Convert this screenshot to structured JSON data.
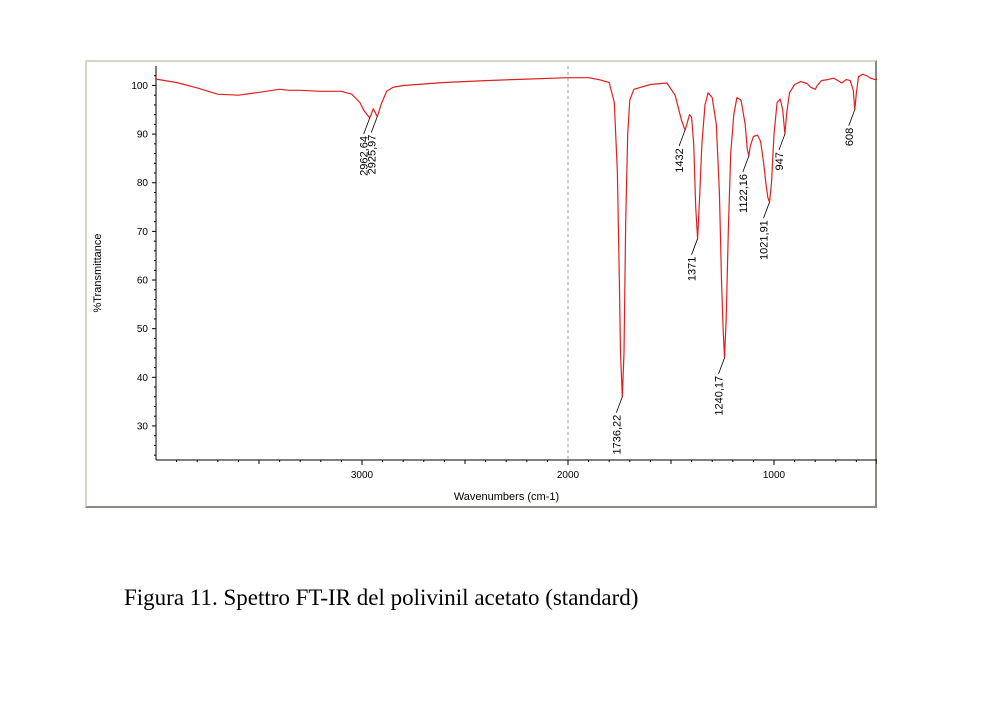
{
  "caption": "Figura 11. Spettro FT-IR del polivinil acetato (standard)",
  "chart_data": {
    "type": "line",
    "xlabel": "Wavenumbers (cm-1)",
    "ylabel": "%Transmittance",
    "xlim": [
      4000,
      500
    ],
    "ylim": [
      23,
      104
    ],
    "x_reversed": true,
    "x_ticks": [
      3000,
      2000,
      1000
    ],
    "y_ticks": [
      30,
      40,
      50,
      60,
      70,
      80,
      90,
      100
    ],
    "vertical_reference_line": 2000,
    "line_color": "#e02020",
    "series": [
      {
        "values": [
          [
            4000,
            101.3
          ],
          [
            3900,
            100.6
          ],
          [
            3800,
            99.5
          ],
          [
            3700,
            98.2
          ],
          [
            3600,
            98.0
          ],
          [
            3500,
            98.6
          ],
          [
            3400,
            99.2
          ],
          [
            3350,
            99.0
          ],
          [
            3300,
            99.0
          ],
          [
            3200,
            98.8
          ],
          [
            3100,
            98.8
          ],
          [
            3050,
            98.2
          ],
          [
            3010,
            96.5
          ],
          [
            2990,
            94.8
          ],
          [
            2962.64,
            93.3
          ],
          [
            2945,
            95.2
          ],
          [
            2925.97,
            93.6
          ],
          [
            2905,
            96.4
          ],
          [
            2880,
            98.8
          ],
          [
            2850,
            99.6
          ],
          [
            2800,
            100.0
          ],
          [
            2600,
            100.6
          ],
          [
            2400,
            101.0
          ],
          [
            2200,
            101.3
          ],
          [
            2000,
            101.6
          ],
          [
            1900,
            101.6
          ],
          [
            1850,
            101.2
          ],
          [
            1800,
            100.6
          ],
          [
            1775,
            96.5
          ],
          [
            1760,
            82.0
          ],
          [
            1750,
            58.0
          ],
          [
            1745,
            45.0
          ],
          [
            1736.22,
            36.0
          ],
          [
            1728,
            45.0
          ],
          [
            1720,
            72.0
          ],
          [
            1710,
            90.0
          ],
          [
            1700,
            97.0
          ],
          [
            1680,
            99.2
          ],
          [
            1600,
            100.2
          ],
          [
            1520,
            100.5
          ],
          [
            1480,
            98.0
          ],
          [
            1450,
            93.0
          ],
          [
            1432,
            90.8
          ],
          [
            1420,
            92.5
          ],
          [
            1410,
            94.0
          ],
          [
            1400,
            93.5
          ],
          [
            1390,
            88.0
          ],
          [
            1380,
            75.0
          ],
          [
            1371,
            68.5
          ],
          [
            1362,
            76.0
          ],
          [
            1350,
            88.0
          ],
          [
            1335,
            96.0
          ],
          [
            1320,
            98.5
          ],
          [
            1300,
            97.5
          ],
          [
            1280,
            92.0
          ],
          [
            1265,
            78.0
          ],
          [
            1255,
            60.0
          ],
          [
            1247,
            50.0
          ],
          [
            1240.17,
            44.0
          ],
          [
            1232,
            52.0
          ],
          [
            1222,
            70.0
          ],
          [
            1210,
            86.0
          ],
          [
            1195,
            94.0
          ],
          [
            1180,
            97.5
          ],
          [
            1160,
            97.0
          ],
          [
            1140,
            92.0
          ],
          [
            1130,
            87.0
          ],
          [
            1122.16,
            85.5
          ],
          [
            1115,
            87.5
          ],
          [
            1100,
            89.5
          ],
          [
            1080,
            89.8
          ],
          [
            1065,
            88.5
          ],
          [
            1050,
            84.0
          ],
          [
            1040,
            80.0
          ],
          [
            1030,
            77.0
          ],
          [
            1021.91,
            76.0
          ],
          [
            1012,
            80.0
          ],
          [
            1000,
            90.0
          ],
          [
            985,
            96.5
          ],
          [
            970,
            97.2
          ],
          [
            958,
            95.0
          ],
          [
            947,
            90.0
          ],
          [
            938,
            94.5
          ],
          [
            925,
            98.5
          ],
          [
            900,
            100.2
          ],
          [
            870,
            100.8
          ],
          [
            840,
            100.4
          ],
          [
            820,
            99.6
          ],
          [
            800,
            99.2
          ],
          [
            790,
            100.0
          ],
          [
            770,
            101.0
          ],
          [
            740,
            101.2
          ],
          [
            710,
            101.5
          ],
          [
            690,
            101.0
          ],
          [
            670,
            100.5
          ],
          [
            650,
            101.2
          ],
          [
            630,
            101.0
          ],
          [
            615,
            99.0
          ],
          [
            608,
            95.0
          ],
          [
            600,
            98.5
          ],
          [
            590,
            101.8
          ],
          [
            570,
            102.3
          ],
          [
            550,
            102.0
          ],
          [
            530,
            101.5
          ],
          [
            510,
            101.2
          ],
          [
            500,
            101.3
          ]
        ]
      }
    ],
    "peaks": [
      {
        "label": "2962,64",
        "x": 2962.64,
        "y": 93.3
      },
      {
        "label": "2925,97",
        "x": 2925.97,
        "y": 93.6
      },
      {
        "label": "1736,22",
        "x": 1736.22,
        "y": 36.0
      },
      {
        "label": "1432",
        "x": 1432,
        "y": 90.8
      },
      {
        "label": "1371",
        "x": 1371,
        "y": 68.5
      },
      {
        "label": "1240,17",
        "x": 1240.17,
        "y": 44.0
      },
      {
        "label": "1122,16",
        "x": 1122.16,
        "y": 85.5
      },
      {
        "label": "1021,91",
        "x": 1021.91,
        "y": 76.0
      },
      {
        "label": "947",
        "x": 947,
        "y": 90.0
      },
      {
        "label": "608",
        "x": 608,
        "y": 95.0
      }
    ]
  }
}
